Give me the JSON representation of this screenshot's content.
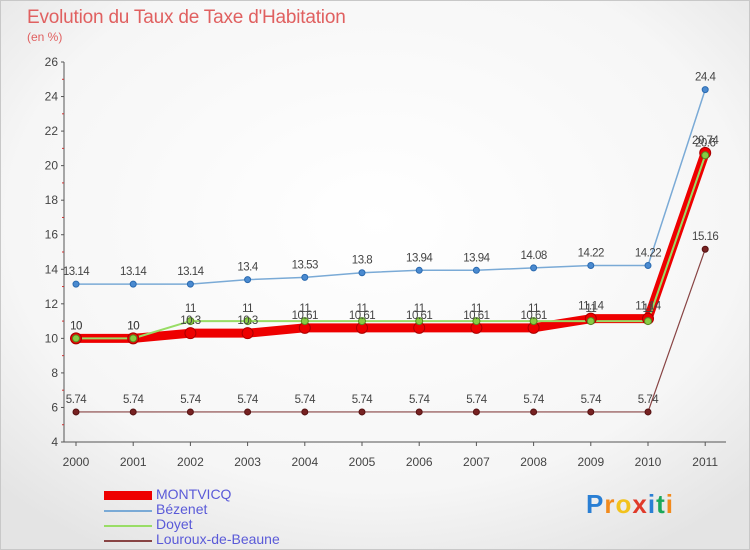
{
  "header": {
    "title": "Evolution du Taux de Taxe d'Habitation",
    "unit": "(en %)"
  },
  "brand": {
    "letters": [
      "P",
      "r",
      "o",
      "x",
      "i",
      "t",
      "i"
    ],
    "colors": [
      "#2a7fd4",
      "#f28a1c",
      "#f2c21c",
      "#e03a2a",
      "#2a7fd4",
      "#1ca85a",
      "#f28a1c"
    ]
  },
  "chart_data": {
    "type": "line",
    "title": "Evolution du Taux de Taxe d'Habitation",
    "ylabel": "(en %)",
    "xlabel": "",
    "ylim": [
      4,
      26
    ],
    "yticks": [
      "4",
      "6",
      "8",
      "10",
      "12",
      "14",
      "16",
      "18",
      "20",
      "22",
      "24",
      "26"
    ],
    "x": [
      "2000",
      "2001",
      "2002",
      "2003",
      "2004",
      "2005",
      "2006",
      "2007",
      "2008",
      "2009",
      "2010",
      "2011"
    ],
    "grid": false,
    "legend": "bottom-left",
    "series": [
      {
        "name": "MONTVICQ",
        "color": "#ee0000",
        "values": [
          10,
          10,
          10.3,
          10.3,
          10.61,
          10.61,
          10.61,
          10.61,
          10.61,
          11.14,
          11.14,
          20.74
        ],
        "labels": [
          "10",
          "10",
          "10.3",
          "10.3",
          "10.61",
          "10.61",
          "10.61",
          "10.61",
          "10.61",
          "11.14",
          "11.14",
          "20.74"
        ]
      },
      {
        "name": "Bézenet",
        "color": "#7aaad6",
        "values": [
          13.14,
          13.14,
          13.14,
          13.4,
          13.53,
          13.8,
          13.94,
          13.94,
          14.08,
          14.22,
          14.22,
          24.4
        ],
        "labels": [
          "13.14",
          "13.14",
          "13.14",
          "13.4",
          "13.53",
          "13.8",
          "13.94",
          "13.94",
          "14.08",
          "14.22",
          "14.22",
          "24.4"
        ]
      },
      {
        "name": "Doyet",
        "color": "#99dd66",
        "values": [
          10,
          10,
          11,
          11,
          11,
          11,
          11,
          11,
          11,
          11,
          11,
          20.6
        ],
        "labels": [
          "10",
          "10",
          "11",
          "11",
          "11",
          "11",
          "11",
          "11",
          "11",
          "11",
          "11",
          "20.6"
        ]
      },
      {
        "name": "Louroux-de-Beaune",
        "color": "#884444",
        "values": [
          5.74,
          5.74,
          5.74,
          5.74,
          5.74,
          5.74,
          5.74,
          5.74,
          5.74,
          5.74,
          5.74,
          15.16
        ],
        "labels": [
          "5.74",
          "5.74",
          "5.74",
          "5.74",
          "5.74",
          "5.74",
          "5.74",
          "5.74",
          "5.74",
          "5.74",
          "5.74",
          "15.16"
        ]
      }
    ]
  }
}
